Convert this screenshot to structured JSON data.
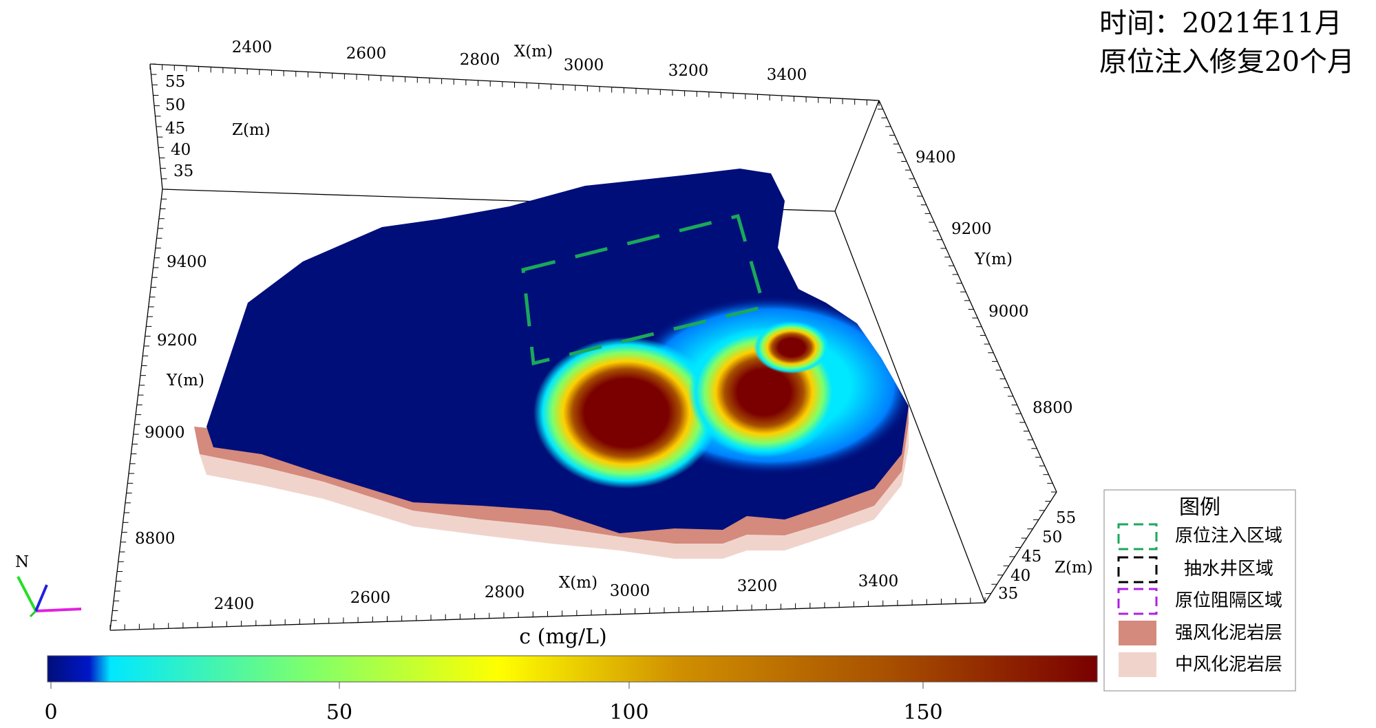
{
  "title": {
    "line1": "时间：2021年11月",
    "line2": "原位注入修复20个月"
  },
  "axes": {
    "x_label": "X(m)",
    "y_label": "Y(m)",
    "z_label": "Z(m)",
    "x_ticks_top": [
      "2400",
      "2600",
      "2800",
      "3000",
      "3200",
      "3400"
    ],
    "x_ticks_bottom": [
      "2400",
      "2600",
      "2800",
      "3000",
      "3200",
      "3400"
    ],
    "y_ticks_left": [
      "9400",
      "9200",
      "9000",
      "8800"
    ],
    "y_ticks_right": [
      "9400",
      "9200",
      "9000",
      "8800"
    ],
    "z_ticks_left": [
      "55",
      "50",
      "45",
      "40",
      "35"
    ],
    "z_ticks_right": [
      "55",
      "50",
      "45",
      "40",
      "35"
    ]
  },
  "compass": {
    "label": "N"
  },
  "colorbar": {
    "title": "c (mg/L)",
    "min": 0,
    "max": 175,
    "ticks": [
      "0",
      "50",
      "100",
      "150"
    ],
    "colors": [
      "#000e7a",
      "#0017c8",
      "#00e8ff",
      "#7fff6a",
      "#ffff00",
      "#d09000",
      "#a85000",
      "#7a0000"
    ]
  },
  "legend": {
    "title": "图例",
    "items": [
      {
        "label": "原位注入区域",
        "style": "dashed",
        "color": "#1aa85a"
      },
      {
        "label": "抽水井区域",
        "style": "dashed",
        "color": "#000000"
      },
      {
        "label": "原位阻隔区域",
        "style": "dashed",
        "color": "#b020e0"
      },
      {
        "label": "强风化泥岩层",
        "style": "fill",
        "color": "#d48a7c"
      },
      {
        "label": "中风化泥岩层",
        "style": "fill",
        "color": "#f0d4cc"
      }
    ]
  },
  "layer_colors": {
    "plume_base": "#000e7a",
    "strong_weathered": "#d48a7c",
    "moderate_weathered": "#f0d4cc",
    "injection_zone": "#1aa85a"
  }
}
